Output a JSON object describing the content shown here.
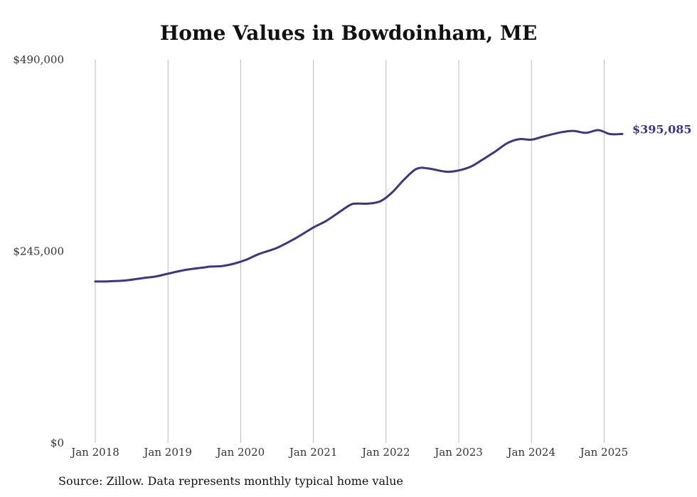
{
  "chart_data": {
    "type": "line",
    "title": "Home Values in Bowdoinham, ME",
    "xlabel": "",
    "ylabel": "",
    "ylim": [
      0,
      490000
    ],
    "y_ticks": [
      {
        "value": 0,
        "label": "$0"
      },
      {
        "value": 245000,
        "label": "$245,000"
      },
      {
        "value": 490000,
        "label": "$490,000"
      }
    ],
    "x_ticks": [
      {
        "value": 2018,
        "label": "Jan 2018"
      },
      {
        "value": 2019,
        "label": "Jan 2019"
      },
      {
        "value": 2020,
        "label": "Jan 2020"
      },
      {
        "value": 2021,
        "label": "Jan 2021"
      },
      {
        "value": 2022,
        "label": "Jan 2022"
      },
      {
        "value": 2023,
        "label": "Jan 2023"
      },
      {
        "value": 2024,
        "label": "Jan 2024"
      },
      {
        "value": 2025,
        "label": "Jan 2025"
      }
    ],
    "xlim": [
      2018,
      2025.25
    ],
    "grid": "vertical",
    "line_color": "#3d348b",
    "series": [
      {
        "end_label": "$395,085",
        "x": [
          2018.0,
          2018.17,
          2018.42,
          2018.67,
          2018.83,
          2019.0,
          2019.25,
          2019.5,
          2019.58,
          2019.75,
          2019.92,
          2020.08,
          2020.25,
          2020.5,
          2020.75,
          2021.0,
          2021.17,
          2021.33,
          2021.5,
          2021.58,
          2021.75,
          2021.92,
          2022.08,
          2022.25,
          2022.42,
          2022.58,
          2022.83,
          2023.0,
          2023.17,
          2023.33,
          2023.5,
          2023.67,
          2023.83,
          2024.0,
          2024.17,
          2024.42,
          2024.58,
          2024.75,
          2024.92,
          2025.08,
          2025.25
        ],
        "values": [
          206500,
          206600,
          207800,
          211000,
          212800,
          216500,
          221500,
          224500,
          225500,
          226300,
          229500,
          234500,
          241500,
          249500,
          261500,
          275500,
          283500,
          293500,
          304000,
          306000,
          306000,
          309000,
          320000,
          337000,
          350500,
          351000,
          346800,
          348500,
          353500,
          362500,
          372500,
          383500,
          388500,
          387800,
          392000,
          397500,
          399000,
          396500,
          400000,
          395000,
          395085
        ]
      }
    ]
  },
  "source_note": "Source: Zillow. Data represents monthly typical home value"
}
